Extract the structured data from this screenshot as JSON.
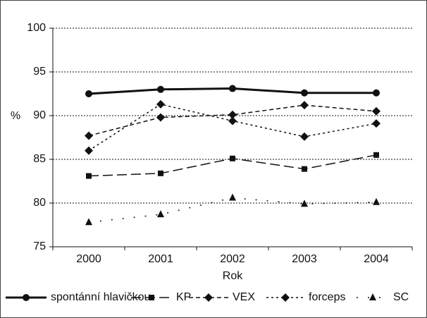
{
  "chart_data": {
    "type": "line",
    "x_label": "Rok",
    "y_label": "%",
    "categories": [
      "2000",
      "2001",
      "2002",
      "2003",
      "2004"
    ],
    "ylim": [
      75,
      100
    ],
    "yticks": [
      75,
      80,
      85,
      90,
      95,
      100
    ],
    "grid": true,
    "series": [
      {
        "name": "spontánní hlavičkou",
        "color": "#111111",
        "marker": "circle",
        "dash": "solid",
        "values": [
          92.5,
          93.0,
          93.1,
          92.6,
          92.6
        ]
      },
      {
        "name": "KP",
        "color": "#111111",
        "marker": "square",
        "dash": "long",
        "values": [
          83.1,
          83.4,
          85.1,
          83.9,
          85.5
        ]
      },
      {
        "name": "VEX",
        "color": "#111111",
        "marker": "diamond",
        "dash": "dash",
        "values": [
          87.7,
          89.8,
          90.1,
          91.2,
          90.5
        ]
      },
      {
        "name": "forceps",
        "color": "#111111",
        "marker": "diamond",
        "dash": "dot",
        "values": [
          86.0,
          91.3,
          89.4,
          87.6,
          89.1
        ]
      },
      {
        "name": "SC",
        "color": "#111111",
        "marker": "triangle",
        "dash": "sparse",
        "values": [
          77.8,
          78.7,
          80.6,
          79.9,
          80.1
        ]
      }
    ]
  }
}
